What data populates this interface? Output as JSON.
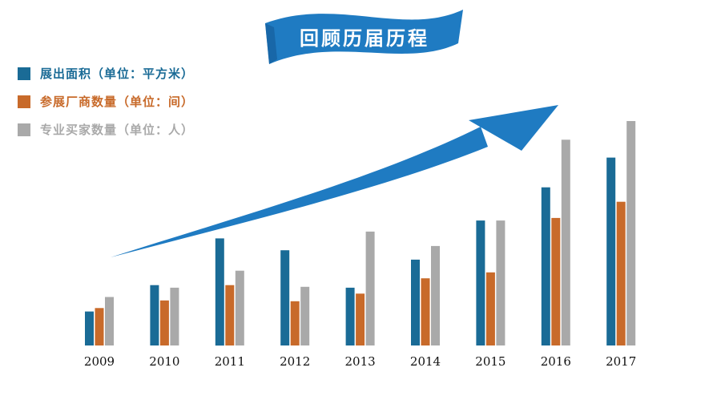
{
  "colors": {
    "area": "#1a6b96",
    "vendors": "#c86a2a",
    "buyers": "#a9a9a9",
    "arrow": "#1f7bc2",
    "axis": "#b5b5b5",
    "background": "#ffffff"
  },
  "chart_data": {
    "type": "bar",
    "title": "回顾历届历程",
    "categories": [
      "2009",
      "2010",
      "2011",
      "2012",
      "2013",
      "2014",
      "2015",
      "2016",
      "2017"
    ],
    "series": [
      {
        "name": "展出面积（单位：平方米）",
        "values": [
          40,
          71,
          126,
          112,
          68,
          101,
          147,
          186,
          221
        ]
      },
      {
        "name": "参展厂商数量（单位：间）",
        "values": [
          44,
          53,
          71,
          52,
          61,
          79,
          86,
          150,
          169
        ]
      },
      {
        "name": "专业买家数量（单位：人）",
        "values": [
          57,
          68,
          88,
          69,
          134,
          117,
          147,
          242,
          264
        ]
      }
    ],
    "legend_position": "top-left",
    "grid": false,
    "ylim": [
      0,
      280
    ],
    "value_axis_shown": false,
    "decorations": [
      "upward-trend-arrow",
      "title-ribbon-banner"
    ]
  }
}
